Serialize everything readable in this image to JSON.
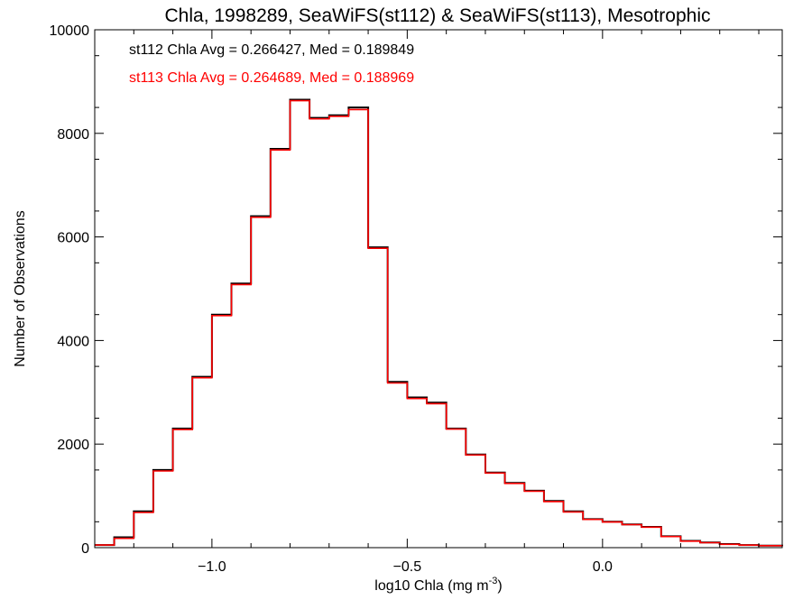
{
  "chart_data": {
    "type": "line",
    "title": "Chla, 1998289, SeaWiFS(st112) & SeaWiFS(st113), Mesotrophic",
    "xlabel": "log10 Chla (mg m",
    "xlabel_sup": "-3",
    "xlabel_close": ")",
    "ylabel": "Number of Observations",
    "xlim": [
      -1.3,
      0.46
    ],
    "ylim": [
      0,
      10000
    ],
    "x_ticks": [
      -1.0,
      -0.5,
      0.0
    ],
    "x_tick_labels": [
      "−1.0",
      "−0.5",
      "0.0"
    ],
    "y_ticks": [
      0,
      2000,
      4000,
      6000,
      8000,
      10000
    ],
    "y_tick_labels": [
      "0",
      "2000",
      "4000",
      "6000",
      "8000",
      "10000"
    ],
    "grid": false,
    "step": true,
    "annotations": [
      {
        "text": "st112 Chla Avg = 0.266427, Med = 0.189849",
        "color": "#000000"
      },
      {
        "text": "st113 Chla Avg = 0.264689, Med = 0.188969",
        "color": "#ff0000"
      }
    ],
    "x": [
      -1.3,
      -1.25,
      -1.2,
      -1.15,
      -1.1,
      -1.05,
      -1.0,
      -0.95,
      -0.9,
      -0.85,
      -0.8,
      -0.75,
      -0.7,
      -0.65,
      -0.6,
      -0.55,
      -0.5,
      -0.45,
      -0.4,
      -0.35,
      -0.3,
      -0.25,
      -0.2,
      -0.15,
      -0.1,
      -0.05,
      0.0,
      0.05,
      0.1,
      0.15,
      0.2,
      0.25,
      0.3,
      0.35,
      0.4,
      0.46
    ],
    "series": [
      {
        "color": "#000000",
        "values": [
          50,
          200,
          700,
          1500,
          2300,
          3300,
          4500,
          5100,
          6400,
          7700,
          8650,
          8300,
          8350,
          8500,
          5800,
          3200,
          2900,
          2800,
          2300,
          1800,
          1450,
          1250,
          1100,
          900,
          700,
          550,
          500,
          450,
          400,
          220,
          130,
          100,
          70,
          50,
          40,
          30
        ]
      },
      {
        "color": "#ff0000",
        "values": [
          50,
          180,
          680,
          1480,
          2280,
          3280,
          4480,
          5080,
          6380,
          7680,
          8630,
          8280,
          8330,
          8460,
          5780,
          3180,
          2880,
          2780,
          2290,
          1790,
          1440,
          1240,
          1090,
          890,
          690,
          545,
          495,
          445,
          395,
          215,
          125,
          95,
          65,
          48,
          38,
          28
        ]
      }
    ]
  }
}
